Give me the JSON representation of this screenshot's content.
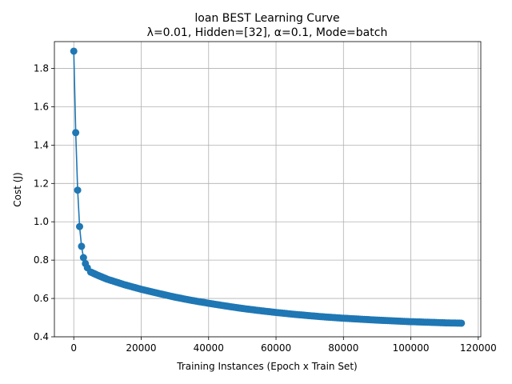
{
  "chart_data": {
    "type": "line",
    "title_line1": "loan BEST Learning Curve",
    "title_line2": "λ=0.01,  Hidden=[32], α=0.1, Mode=batch",
    "xlabel": "Training Instances (Epoch x Train Set)",
    "ylabel": "Cost (J)",
    "xlim": [
      -5750,
      120750
    ],
    "ylim": [
      0.4,
      1.94
    ],
    "xticks": [
      0,
      20000,
      40000,
      60000,
      80000,
      100000,
      120000
    ],
    "xtick_labels": [
      "0",
      "20000",
      "40000",
      "60000",
      "80000",
      "100000",
      "120000"
    ],
    "yticks": [
      0.4,
      0.6,
      0.8,
      1.0,
      1.2,
      1.4,
      1.6,
      1.8
    ],
    "ytick_labels": [
      "0.4",
      "0.6",
      "0.8",
      "1.0",
      "1.2",
      "1.4",
      "1.6",
      "1.8"
    ],
    "grid": true,
    "color": "#1f77b4",
    "marker": "circle",
    "series": [
      {
        "x": [
          0,
          575,
          1150,
          1725,
          2300,
          2875,
          3450,
          4025,
          5000,
          7500,
          10000,
          15000,
          20000,
          25000,
          30000,
          35000,
          40000,
          45000,
          50000,
          55000,
          60000,
          65000,
          70000,
          75000,
          80000,
          85000,
          90000,
          95000,
          100000,
          105000,
          110000,
          115000
        ],
        "y": [
          1.89,
          1.465,
          1.165,
          0.975,
          0.872,
          0.813,
          0.782,
          0.76,
          0.738,
          0.718,
          0.7,
          0.672,
          0.648,
          0.627,
          0.607,
          0.59,
          0.575,
          0.561,
          0.548,
          0.537,
          0.527,
          0.518,
          0.51,
          0.503,
          0.497,
          0.492,
          0.487,
          0.483,
          0.479,
          0.476,
          0.473,
          0.471
        ]
      }
    ]
  }
}
